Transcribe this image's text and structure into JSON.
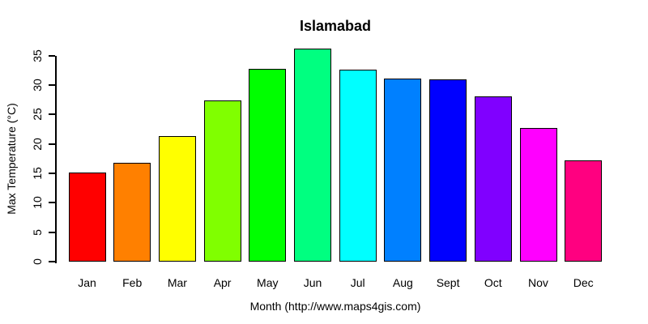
{
  "chart_data": {
    "type": "bar",
    "title": "Islamabad",
    "xlabel": "Month (http://www.maps4gis.com)",
    "ylabel": "Max Temperature (°C)",
    "categories": [
      "Jan",
      "Feb",
      "Mar",
      "Apr",
      "May",
      "Jun",
      "Jul",
      "Aug",
      "Sept",
      "Oct",
      "Nov",
      "Dec"
    ],
    "values": [
      15.1,
      16.8,
      21.3,
      27.4,
      32.8,
      36.2,
      32.6,
      31.1,
      31.0,
      28.1,
      22.7,
      17.2
    ],
    "bar_colors": [
      "#FF0000",
      "#FF8000",
      "#FFFF00",
      "#80FF00",
      "#00FF00",
      "#00FF80",
      "#00FFFF",
      "#0080FF",
      "#0000FF",
      "#8000FF",
      "#FF00FF",
      "#FF0080"
    ],
    "bar_border_color": "#000000",
    "ylim": [
      0,
      35
    ],
    "yticks": [
      0,
      5,
      10,
      15,
      20,
      25,
      30,
      35
    ],
    "grid": false,
    "legend": "none",
    "background": "#FFFFFF",
    "text_color": "#000000"
  }
}
